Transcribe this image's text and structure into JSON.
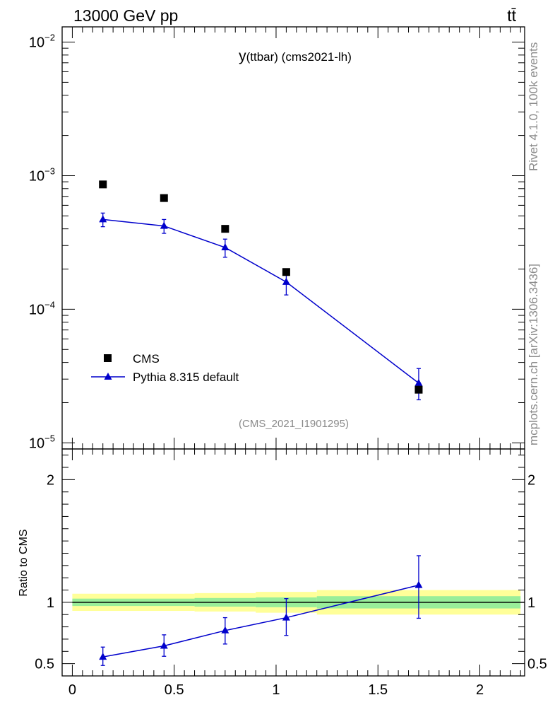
{
  "header": {
    "energy_label": "13000 GeV pp",
    "process_label": "tt̄"
  },
  "side_labels": {
    "rivet": "Rivet 4.1.0,  100k events",
    "mcplots": "mcplots.cern.ch [arXiv:1306.3436]"
  },
  "chart_data": [
    {
      "type": "scatter",
      "panel": "main",
      "title": "y(ttbar) (cms2021-lh)",
      "title_parts": {
        "y": "y",
        "rest": "(ttbar) (cms2021-lh)"
      },
      "watermark": "(CMS_2021_I1901295)",
      "y_scale": "log",
      "ylim": [
        9e-06,
        0.013
      ],
      "xlim": [
        -0.05,
        2.22
      ],
      "y_tick_labels": [
        {
          "base": "10",
          "exp": "−2",
          "value": 0.01
        },
        {
          "base": "10",
          "exp": "−3",
          "value": 0.001
        },
        {
          "base": "10",
          "exp": "−4",
          "value": 0.0001
        },
        {
          "base": "10",
          "exp": "−5",
          "value": 1e-05
        }
      ],
      "legend_position": "bottom-left",
      "series": [
        {
          "name": "CMS",
          "marker": "square",
          "color": "#000000",
          "x": [
            0.15,
            0.45,
            0.75,
            1.05,
            1.7
          ],
          "y": [
            0.00086,
            0.00068,
            0.0004,
            0.00019,
            2.5e-05
          ]
        },
        {
          "name": "Pythia 8.315 default",
          "marker": "triangle",
          "color": "#0000cc",
          "x": [
            0.15,
            0.45,
            0.75,
            1.05,
            1.7
          ],
          "y": [
            0.00047,
            0.00042,
            0.00029,
            0.00016,
            2.8e-05
          ],
          "y_err_low": [
            5.5e-05,
            5e-05,
            4.5e-05,
            3.2e-05,
            7e-06
          ],
          "y_err_high": [
            5.5e-05,
            5e-05,
            4.5e-05,
            3.2e-05,
            8e-06
          ]
        }
      ]
    },
    {
      "type": "scatter",
      "panel": "ratio",
      "ylabel": "Ratio to CMS",
      "y_scale": "linear",
      "ylim": [
        0.4,
        2.25
      ],
      "xlim": [
        -0.05,
        2.22
      ],
      "y_ticks": [
        0.5,
        1,
        2
      ],
      "y_tick_labels": [
        "0.5",
        "1",
        "2"
      ],
      "x_ticks": [
        0,
        0.5,
        1,
        1.5,
        2
      ],
      "x_tick_labels": [
        "0",
        "0.5",
        "1",
        "1.5",
        "2"
      ],
      "bands": [
        {
          "x0": 0.0,
          "x1": 0.3,
          "green": [
            0.97,
            1.03
          ],
          "yellow": [
            0.93,
            1.07
          ]
        },
        {
          "x0": 0.3,
          "x1": 0.6,
          "green": [
            0.97,
            1.03
          ],
          "yellow": [
            0.93,
            1.07
          ]
        },
        {
          "x0": 0.6,
          "x1": 0.9,
          "green": [
            0.965,
            1.035
          ],
          "yellow": [
            0.925,
            1.075
          ]
        },
        {
          "x0": 0.9,
          "x1": 1.2,
          "green": [
            0.96,
            1.04
          ],
          "yellow": [
            0.915,
            1.085
          ]
        },
        {
          "x0": 1.2,
          "x1": 2.2,
          "green": [
            0.95,
            1.05
          ],
          "yellow": [
            0.9,
            1.1
          ]
        }
      ],
      "series": [
        {
          "name": "Pythia 8.315 default",
          "marker": "triangle",
          "color": "#0000cc",
          "x": [
            0.15,
            0.45,
            0.75,
            1.05,
            1.7
          ],
          "y": [
            0.555,
            0.645,
            0.77,
            0.875,
            1.14
          ],
          "y_err_low": [
            0.07,
            0.085,
            0.11,
            0.145,
            0.27
          ],
          "y_err_high": [
            0.08,
            0.09,
            0.105,
            0.155,
            0.24
          ]
        }
      ]
    }
  ]
}
